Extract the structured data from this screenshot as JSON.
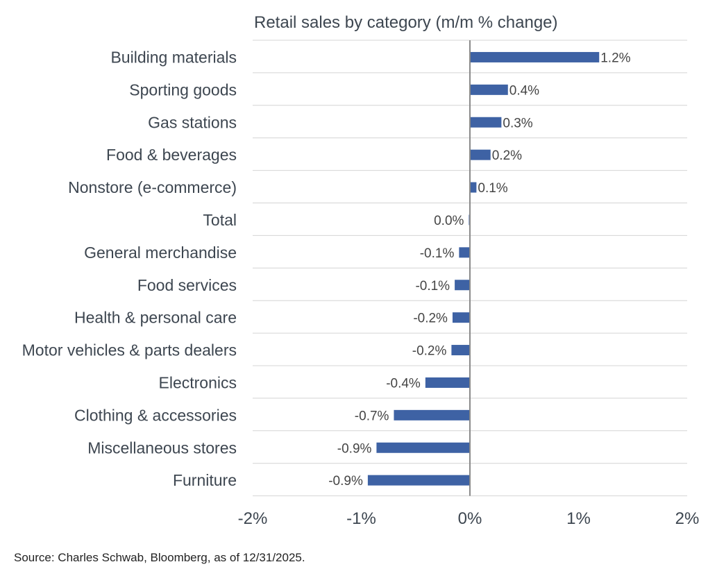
{
  "chart_data": {
    "type": "bar",
    "orientation": "horizontal",
    "title": "Retail sales by category (m/m % change)",
    "xlabel": "",
    "ylabel": "",
    "xlim": [
      -2,
      2
    ],
    "x_ticks": [
      -2,
      -1,
      0,
      1,
      2
    ],
    "x_tick_labels": [
      "-2%",
      "-1%",
      "0%",
      "1%",
      "2%"
    ],
    "grid": true,
    "bar_color": "#3e62a4",
    "categories": [
      "Building materials",
      "Sporting goods",
      "Gas stations",
      "Food & beverages",
      "Nonstore (e-commerce)",
      "Total",
      "General merchandise",
      "Food services",
      "Health & personal care",
      "Motor vehicles & parts dealers",
      "Electronics",
      "Clothing & accessories",
      "Miscellaneous stores",
      "Furniture"
    ],
    "values": [
      1.19,
      0.35,
      0.29,
      0.19,
      0.06,
      -0.01,
      -0.1,
      -0.14,
      -0.16,
      -0.17,
      -0.41,
      -0.7,
      -0.86,
      -0.94
    ],
    "data_labels": [
      "1.2%",
      "0.4%",
      "0.3%",
      "0.2%",
      "0.1%",
      "0.0%",
      "-0.1%",
      "-0.1%",
      "-0.2%",
      "-0.2%",
      "-0.4%",
      "-0.7%",
      "-0.9%",
      "-0.9%"
    ]
  },
  "footer": {
    "source": "Source: Charles Schwab, Bloomberg, as of 12/31/2025."
  }
}
